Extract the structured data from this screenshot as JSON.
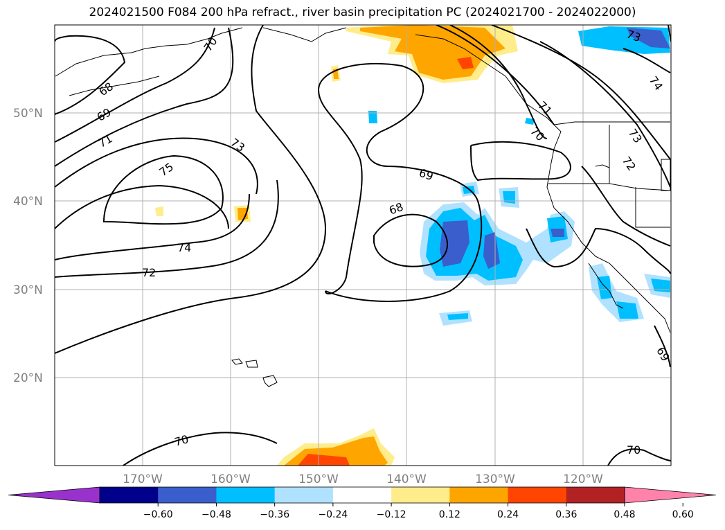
{
  "title": "2024021500 F084 200 hPa refract., river basin precipitation PC (2024021700 - 2024022000)",
  "lat_labels": [
    "50°N",
    "40°N",
    "30°N",
    "20°N"
  ],
  "lon_labels": [
    "170°W",
    "160°W",
    "150°W",
    "140°W",
    "130°W",
    "120°W"
  ],
  "contour_labels": [
    "70",
    "68",
    "69",
    "71",
    "75",
    "73",
    "74",
    "72",
    "69",
    "68",
    "73",
    "74",
    "71",
    "70",
    "73",
    "72",
    "69",
    "70",
    "70"
  ],
  "colorbar": {
    "ticks": [
      "−0.60",
      "−0.48",
      "−0.36",
      "−0.24",
      "−0.12",
      "0.12",
      "0.24",
      "0.36",
      "0.48",
      "0.60"
    ],
    "colors": [
      "#9932cc",
      "#00008b",
      "#3a5fcd",
      "#00bfff",
      "#b0e2ff",
      "#ffffff",
      "#ffec8b",
      "#ffa500",
      "#ff4500",
      "#b22222",
      "#ff82ab"
    ]
  }
}
